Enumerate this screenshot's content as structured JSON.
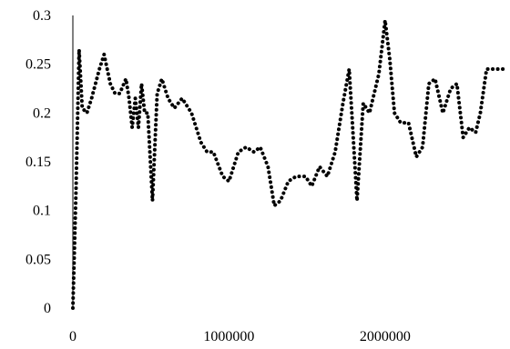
{
  "chart_data": {
    "type": "line",
    "title": "",
    "xlabel": "",
    "ylabel": "",
    "line_style": "dotted",
    "grid": false,
    "legend": "none",
    "colors": {
      "series": "#000000",
      "axis": "#000000",
      "text": "#000000",
      "background": "#ffffff"
    },
    "xlim": [
      0,
      2800000
    ],
    "ylim": [
      0,
      0.3
    ],
    "x_ticks": [
      0,
      1000000,
      2000000
    ],
    "x_tick_labels": [
      "0",
      "1000000",
      "2000000"
    ],
    "y_ticks": [
      0,
      0.05,
      0.1,
      0.15,
      0.2,
      0.25,
      0.3
    ],
    "y_tick_labels": [
      "0",
      "0.05",
      "0.1",
      "0.15",
      "0.2",
      "0.25",
      "0.3"
    ],
    "series": [
      {
        "points": [
          [
            0,
            0.0
          ],
          [
            20000,
            0.12
          ],
          [
            40000,
            0.265
          ],
          [
            60000,
            0.205
          ],
          [
            90000,
            0.2
          ],
          [
            120000,
            0.215
          ],
          [
            170000,
            0.245
          ],
          [
            200000,
            0.26
          ],
          [
            240000,
            0.23
          ],
          [
            270000,
            0.22
          ],
          [
            300000,
            0.22
          ],
          [
            340000,
            0.235
          ],
          [
            360000,
            0.215
          ],
          [
            380000,
            0.185
          ],
          [
            400000,
            0.215
          ],
          [
            420000,
            0.185
          ],
          [
            440000,
            0.23
          ],
          [
            460000,
            0.2
          ],
          [
            480000,
            0.2
          ],
          [
            510000,
            0.11
          ],
          [
            540000,
            0.22
          ],
          [
            570000,
            0.235
          ],
          [
            610000,
            0.215
          ],
          [
            650000,
            0.205
          ],
          [
            700000,
            0.215
          ],
          [
            760000,
            0.2
          ],
          [
            820000,
            0.17
          ],
          [
            860000,
            0.16
          ],
          [
            900000,
            0.16
          ],
          [
            960000,
            0.135
          ],
          [
            1000000,
            0.13
          ],
          [
            1060000,
            0.16
          ],
          [
            1110000,
            0.165
          ],
          [
            1160000,
            0.16
          ],
          [
            1200000,
            0.165
          ],
          [
            1250000,
            0.145
          ],
          [
            1290000,
            0.105
          ],
          [
            1330000,
            0.11
          ],
          [
            1380000,
            0.13
          ],
          [
            1430000,
            0.135
          ],
          [
            1490000,
            0.135
          ],
          [
            1530000,
            0.125
          ],
          [
            1580000,
            0.145
          ],
          [
            1630000,
            0.135
          ],
          [
            1680000,
            0.16
          ],
          [
            1730000,
            0.21
          ],
          [
            1770000,
            0.245
          ],
          [
            1820000,
            0.11
          ],
          [
            1860000,
            0.21
          ],
          [
            1900000,
            0.2
          ],
          [
            1960000,
            0.24
          ],
          [
            2000000,
            0.295
          ],
          [
            2030000,
            0.255
          ],
          [
            2060000,
            0.2
          ],
          [
            2100000,
            0.19
          ],
          [
            2150000,
            0.19
          ],
          [
            2200000,
            0.155
          ],
          [
            2240000,
            0.165
          ],
          [
            2280000,
            0.23
          ],
          [
            2320000,
            0.235
          ],
          [
            2370000,
            0.2
          ],
          [
            2420000,
            0.225
          ],
          [
            2460000,
            0.23
          ],
          [
            2500000,
            0.175
          ],
          [
            2540000,
            0.185
          ],
          [
            2580000,
            0.18
          ],
          [
            2610000,
            0.2
          ],
          [
            2650000,
            0.245
          ],
          [
            2690000,
            0.245
          ],
          [
            2760000,
            0.245
          ]
        ]
      }
    ]
  }
}
